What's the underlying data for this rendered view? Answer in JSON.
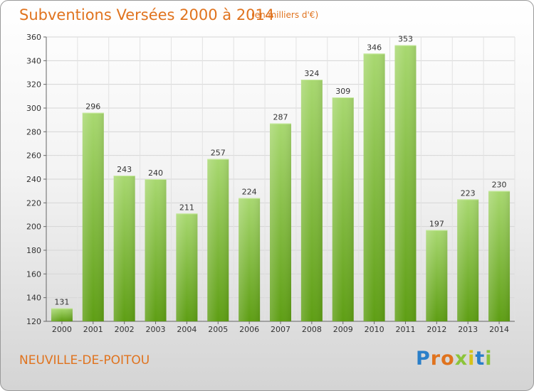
{
  "header": {
    "title": "Subventions Versées 2000 à 2014",
    "subtitle": "(en milliers d'€)"
  },
  "footer": {
    "commune": "NEUVILLE-DE-POITOU",
    "logo_text": "Proxiti"
  },
  "colors": {
    "accent": "#e0731e",
    "bar_light": "#a8d870",
    "bar_dark": "#5e9e14"
  },
  "chart_data": {
    "type": "bar",
    "title": "Subventions Versées 2000 à 2014",
    "subtitle": "(en milliers d'€)",
    "xlabel": "",
    "ylabel": "",
    "categories": [
      "2000",
      "2001",
      "2002",
      "2003",
      "2004",
      "2005",
      "2006",
      "2007",
      "2008",
      "2009",
      "2010",
      "2011",
      "2012",
      "2013",
      "2014"
    ],
    "values": [
      131,
      296,
      243,
      240,
      211,
      257,
      224,
      287,
      324,
      309,
      346,
      353,
      197,
      223,
      230
    ],
    "ylim": [
      120,
      360
    ],
    "yticks": [
      120,
      140,
      160,
      180,
      200,
      220,
      240,
      260,
      280,
      300,
      320,
      340,
      360
    ],
    "grid": true
  }
}
